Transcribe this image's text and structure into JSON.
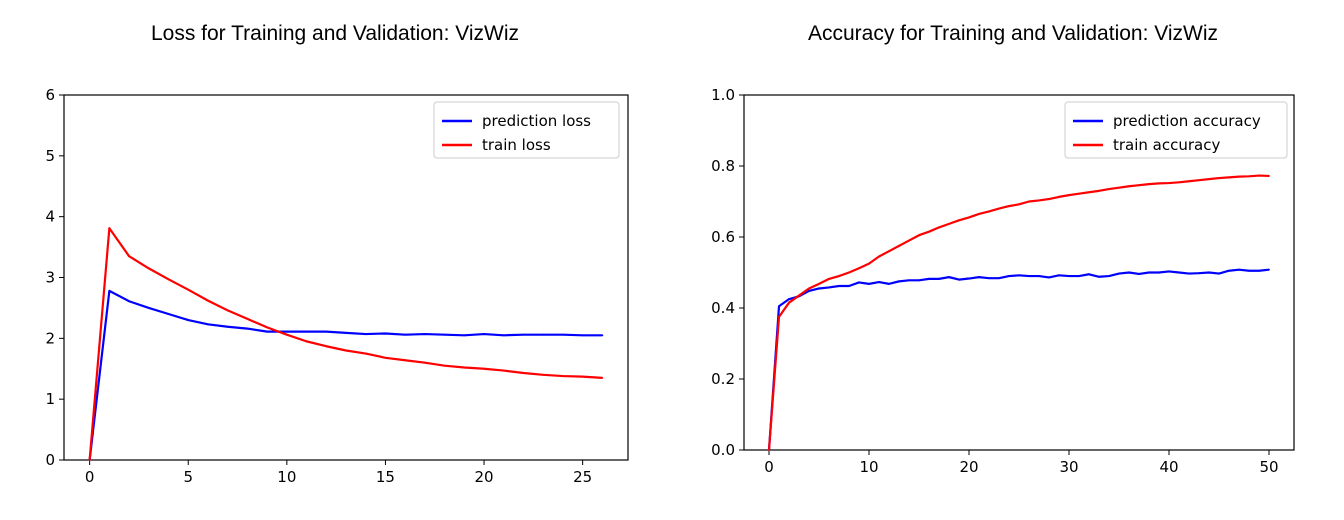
{
  "chart_data": [
    {
      "type": "line",
      "title": "Loss for Training and Validation: VizWiz",
      "xlabel": "",
      "ylabel": "",
      "xlim": [
        -1.3,
        27.3
      ],
      "ylim": [
        0,
        6
      ],
      "xticks": [
        0,
        5,
        10,
        15,
        20,
        25
      ],
      "yticks": [
        0,
        1,
        2,
        3,
        4,
        5,
        6
      ],
      "grid": false,
      "legend_position": "top-right",
      "series": [
        {
          "name": "prediction loss",
          "color": "#0000ff",
          "x": [
            0,
            1,
            2,
            3,
            4,
            5,
            6,
            7,
            8,
            9,
            10,
            11,
            12,
            13,
            14,
            15,
            16,
            17,
            18,
            19,
            20,
            21,
            22,
            23,
            24,
            25,
            26
          ],
          "values": [
            0,
            2.78,
            2.61,
            2.5,
            2.4,
            2.3,
            2.23,
            2.19,
            2.16,
            2.11,
            2.11,
            2.11,
            2.11,
            2.09,
            2.07,
            2.08,
            2.06,
            2.07,
            2.06,
            2.05,
            2.07,
            2.05,
            2.06,
            2.06,
            2.06,
            2.05,
            2.05
          ]
        },
        {
          "name": "train loss",
          "color": "#ff0000",
          "x": [
            0,
            1,
            2,
            3,
            4,
            5,
            6,
            7,
            8,
            9,
            10,
            11,
            12,
            13,
            14,
            15,
            16,
            17,
            18,
            19,
            20,
            21,
            22,
            23,
            24,
            25,
            26
          ],
          "values": [
            0,
            3.81,
            3.35,
            3.15,
            2.97,
            2.8,
            2.62,
            2.46,
            2.32,
            2.18,
            2.06,
            1.95,
            1.87,
            1.8,
            1.75,
            1.68,
            1.64,
            1.6,
            1.55,
            1.52,
            1.5,
            1.47,
            1.43,
            1.4,
            1.38,
            1.37,
            1.35
          ]
        }
      ]
    },
    {
      "type": "line",
      "title": "Accuracy for Training and Validation: VizWiz",
      "xlabel": "",
      "ylabel": "",
      "xlim": [
        -2.5,
        52.5
      ],
      "ylim": [
        0,
        1.0
      ],
      "xticks": [
        0,
        10,
        20,
        30,
        40,
        50
      ],
      "yticks": [
        "0.0",
        "0.2",
        "0.4",
        "0.6",
        "0.8",
        "1.0"
      ],
      "grid": false,
      "legend_position": "top-right",
      "series": [
        {
          "name": "prediction accuracy",
          "color": "#0000ff",
          "x": [
            0,
            1,
            2,
            3,
            4,
            5,
            6,
            7,
            8,
            9,
            10,
            11,
            12,
            13,
            14,
            15,
            16,
            17,
            18,
            19,
            20,
            21,
            22,
            23,
            24,
            25,
            26,
            27,
            28,
            29,
            30,
            31,
            32,
            33,
            34,
            35,
            36,
            37,
            38,
            39,
            40,
            41,
            42,
            43,
            44,
            45,
            46,
            47,
            48,
            49,
            50
          ],
          "values": [
            0,
            0.405,
            0.425,
            0.433,
            0.448,
            0.455,
            0.458,
            0.462,
            0.462,
            0.472,
            0.468,
            0.473,
            0.468,
            0.475,
            0.478,
            0.478,
            0.482,
            0.482,
            0.487,
            0.48,
            0.483,
            0.487,
            0.484,
            0.484,
            0.49,
            0.492,
            0.49,
            0.49,
            0.486,
            0.492,
            0.49,
            0.49,
            0.495,
            0.488,
            0.49,
            0.497,
            0.5,
            0.496,
            0.5,
            0.5,
            0.503,
            0.5,
            0.497,
            0.498,
            0.5,
            0.497,
            0.505,
            0.508,
            0.505,
            0.505,
            0.508
          ]
        },
        {
          "name": "train accuracy",
          "color": "#ff0000",
          "x": [
            0,
            1,
            2,
            3,
            4,
            5,
            6,
            7,
            8,
            9,
            10,
            11,
            12,
            13,
            14,
            15,
            16,
            17,
            18,
            19,
            20,
            21,
            22,
            23,
            24,
            25,
            26,
            27,
            28,
            29,
            30,
            31,
            32,
            33,
            34,
            35,
            36,
            37,
            38,
            39,
            40,
            41,
            42,
            43,
            44,
            45,
            46,
            47,
            48,
            49,
            50
          ],
          "values": [
            0,
            0.375,
            0.415,
            0.435,
            0.455,
            0.468,
            0.482,
            0.49,
            0.5,
            0.512,
            0.525,
            0.545,
            0.56,
            0.575,
            0.59,
            0.605,
            0.615,
            0.627,
            0.637,
            0.647,
            0.655,
            0.665,
            0.672,
            0.68,
            0.687,
            0.692,
            0.7,
            0.703,
            0.707,
            0.713,
            0.718,
            0.722,
            0.726,
            0.73,
            0.735,
            0.739,
            0.743,
            0.746,
            0.749,
            0.751,
            0.752,
            0.754,
            0.757,
            0.76,
            0.763,
            0.766,
            0.768,
            0.77,
            0.771,
            0.773,
            0.772
          ]
        }
      ]
    }
  ]
}
